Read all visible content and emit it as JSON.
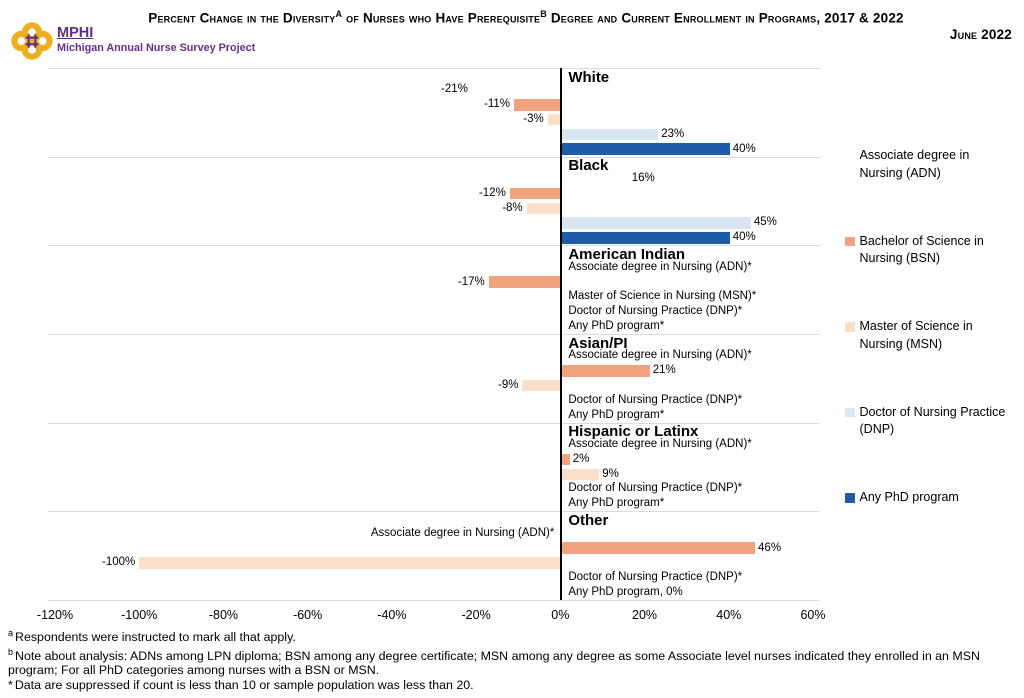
{
  "header": {
    "title": {
      "seg1": "Percent Change in the Diversity",
      "sup1": "A",
      "seg2": " of Nurses who Have Prerequisite",
      "sup2": "B",
      "seg3": " Degree and Current Enrollment in Programs, 2017 & 2022",
      "line2": "June 2022"
    },
    "logo": {
      "org": "MPHI",
      "project": "Michigan Annual Nurse Survey Project",
      "gold": "#EDAF22",
      "purple": "#5F2C87"
    }
  },
  "chart_data": {
    "type": "bar",
    "orientation": "horizontal",
    "grid": "section-separators-on",
    "legend_position": "right",
    "axis": {
      "min": -120,
      "max": 60,
      "tick_step": 20,
      "ticks": [
        "-120%",
        "-100%",
        "-80%",
        "-60%",
        "-40%",
        "-20%",
        "0%",
        "20%",
        "40%",
        "60%"
      ]
    },
    "series": [
      {
        "id": "ADN",
        "legend_label": "Associate degree in Nursing (ADN)",
        "color": "#FFFFFF"
      },
      {
        "id": "BSN",
        "legend_label": "Bachelor of Science in Nursing (BSN)",
        "color": "#F1A27E"
      },
      {
        "id": "MSN",
        "legend_label": "Master of Science in Nursing (MSN)",
        "color": "#FBDFC9"
      },
      {
        "id": "DNP",
        "legend_label": "Doctor of Nursing Practice (DNP)",
        "color": "#D9E5F1"
      },
      {
        "id": "PHD",
        "legend_label": "Any PhD program",
        "color": "#1F5CA8"
      }
    ],
    "groups": [
      {
        "name": "White",
        "rows": [
          {
            "value": -21
          },
          {
            "value": -11
          },
          {
            "value": -3
          },
          {
            "value": 23
          },
          {
            "value": 40
          }
        ]
      },
      {
        "name": "Black",
        "rows": [
          {
            "value": 16
          },
          {
            "value": -12
          },
          {
            "value": -8
          },
          {
            "value": 45
          },
          {
            "value": 40
          }
        ]
      },
      {
        "name": "American Indian",
        "rows": [
          {
            "suppressed": true,
            "label": "Associate degree in Nursing (ADN)*"
          },
          {
            "value": -17
          },
          {
            "suppressed": true,
            "label": "Master of Science in Nursing (MSN)*"
          },
          {
            "suppressed": true,
            "label": "Doctor of Nursing Practice (DNP)*"
          },
          {
            "suppressed": true,
            "label": "Any PhD program*"
          }
        ]
      },
      {
        "name": "Asian/PI",
        "rows": [
          {
            "suppressed": true,
            "label": "Associate degree in Nursing (ADN)*"
          },
          {
            "value": 21
          },
          {
            "value": -9
          },
          {
            "suppressed": true,
            "label": "Doctor of Nursing Practice (DNP)*"
          },
          {
            "suppressed": true,
            "label": "Any PhD program*"
          }
        ]
      },
      {
        "name": "Hispanic or Latinx",
        "rows": [
          {
            "suppressed": true,
            "label": "Associate degree in Nursing (ADN)*"
          },
          {
            "value": 2
          },
          {
            "value": 9
          },
          {
            "suppressed": true,
            "label": "Doctor of Nursing Practice (DNP)*"
          },
          {
            "suppressed": true,
            "label": "Any PhD program*"
          }
        ]
      },
      {
        "name": "Other",
        "rows": [
          {
            "suppressed": true,
            "label": "Associate degree in Nursing (ADN)*",
            "placement": "axis-left"
          },
          {
            "value": 46
          },
          {
            "value": -100
          },
          {
            "suppressed": true,
            "label": "Doctor of Nursing Practice (DNP)*"
          },
          {
            "value": 0,
            "label": "Any PhD program, 0%"
          }
        ]
      }
    ]
  },
  "footnotes": [
    {
      "marker": "a",
      "text": "Respondents were instructed to mark all that apply."
    },
    {
      "marker": "b",
      "text": "Note about analysis: ADNs among LPN diploma; BSN among any degree certificate; MSN among any degree as some Associate level nurses indicated they enrolled in an MSN program; For all PhD categories among nurses with a BSN or MSN."
    },
    {
      "marker": "*",
      "text": "Data are suppressed if count is less than 10 or sample population was less than 20."
    }
  ]
}
